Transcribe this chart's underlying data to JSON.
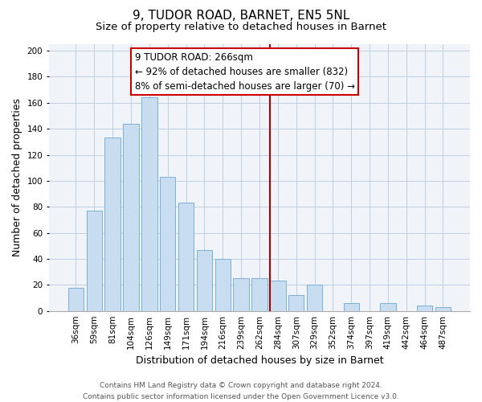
{
  "title": "9, TUDOR ROAD, BARNET, EN5 5NL",
  "subtitle": "Size of property relative to detached houses in Barnet",
  "xlabel": "Distribution of detached houses by size in Barnet",
  "ylabel": "Number of detached properties",
  "categories": [
    "36sqm",
    "59sqm",
    "81sqm",
    "104sqm",
    "126sqm",
    "149sqm",
    "171sqm",
    "194sqm",
    "216sqm",
    "239sqm",
    "262sqm",
    "284sqm",
    "307sqm",
    "329sqm",
    "352sqm",
    "374sqm",
    "397sqm",
    "419sqm",
    "442sqm",
    "464sqm",
    "487sqm"
  ],
  "values": [
    18,
    77,
    133,
    144,
    164,
    103,
    83,
    47,
    40,
    25,
    25,
    23,
    12,
    20,
    0,
    6,
    0,
    6,
    0,
    4,
    3
  ],
  "bar_color": "#c9ddf0",
  "bar_edge_color": "#7ab0d8",
  "grid_color": "#c0cfe0",
  "vline_x_index": 10.55,
  "vline_color": "#aa0000",
  "annotation_line1": "9 TUDOR ROAD: 266sqm",
  "annotation_line2": "← 92% of detached houses are smaller (832)",
  "annotation_line3": "8% of semi-detached houses are larger (70) →",
  "annotation_box_facecolor": "#ffffff",
  "annotation_box_edgecolor": "#cc0000",
  "ylim": [
    0,
    205
  ],
  "yticks": [
    0,
    20,
    40,
    60,
    80,
    100,
    120,
    140,
    160,
    180,
    200
  ],
  "footer_line1": "Contains HM Land Registry data © Crown copyright and database right 2024.",
  "footer_line2": "Contains public sector information licensed under the Open Government Licence v3.0.",
  "title_fontsize": 11,
  "subtitle_fontsize": 9.5,
  "axis_label_fontsize": 9,
  "tick_fontsize": 7.5,
  "annotation_fontsize": 8.5,
  "footer_fontsize": 6.5,
  "bg_color": "#f0f4f8"
}
